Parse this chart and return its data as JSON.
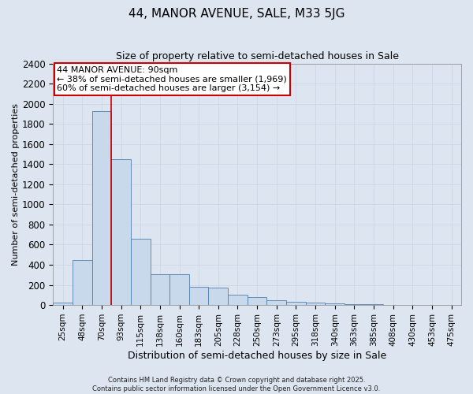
{
  "title": "44, MANOR AVENUE, SALE, M33 5JG",
  "subtitle": "Size of property relative to semi-detached houses in Sale",
  "xlabel": "Distribution of semi-detached houses by size in Sale",
  "ylabel": "Number of semi-detached properties",
  "footer_line1": "Contains HM Land Registry data © Crown copyright and database right 2025.",
  "footer_line2": "Contains public sector information licensed under the Open Government Licence v3.0.",
  "bar_color": "#c9d9ec",
  "bar_edge_color": "#5080b0",
  "grid_color": "#c8d4e4",
  "annotation_box_color": "#cc0000",
  "vline_color": "#cc0000",
  "categories": [
    "25sqm",
    "48sqm",
    "70sqm",
    "93sqm",
    "115sqm",
    "138sqm",
    "160sqm",
    "183sqm",
    "205sqm",
    "228sqm",
    "250sqm",
    "273sqm",
    "295sqm",
    "318sqm",
    "340sqm",
    "363sqm",
    "385sqm",
    "408sqm",
    "430sqm",
    "453sqm",
    "475sqm"
  ],
  "values": [
    25,
    450,
    1930,
    1450,
    660,
    310,
    305,
    180,
    175,
    100,
    80,
    50,
    35,
    25,
    15,
    5,
    5,
    3,
    0,
    0,
    0
  ],
  "vline_bin_index": 3,
  "pct_smaller": 38,
  "n_smaller": 1969,
  "pct_larger": 60,
  "n_larger": 3154,
  "annotation_label": "44 MANOR AVENUE: 90sqm",
  "ylim": [
    0,
    2400
  ],
  "yticks": [
    0,
    200,
    400,
    600,
    800,
    1000,
    1200,
    1400,
    1600,
    1800,
    2000,
    2200,
    2400
  ],
  "background_color": "#dde6f0",
  "plot_background": "#dde6f0"
}
